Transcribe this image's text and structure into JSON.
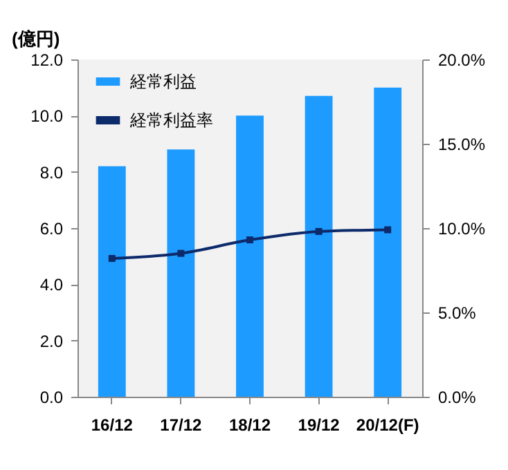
{
  "chart_data": {
    "type": "bar",
    "ylabel": "(億円)",
    "categories": [
      "16/12",
      "17/12",
      "18/12",
      "19/12",
      "20/12(F)"
    ],
    "series": [
      {
        "name": "経常利益",
        "color": "#1e9bff",
        "values": [
          8.2,
          8.8,
          10.0,
          10.7,
          11.0
        ]
      },
      {
        "name": "経常利益率",
        "type": "line",
        "axis": "y2",
        "color": "#0d2a6b",
        "values": [
          8.2,
          8.5,
          9.3,
          9.8,
          9.9
        ]
      }
    ],
    "ylim": [
      0,
      12
    ],
    "yticks": [
      {
        "value": 0,
        "label": "0.0"
      },
      {
        "value": 2,
        "label": "2.0"
      },
      {
        "value": 4,
        "label": "4.0"
      },
      {
        "value": 6,
        "label": "6.0"
      },
      {
        "value": 8,
        "label": "8.0"
      },
      {
        "value": 10,
        "label": "10.0"
      },
      {
        "value": 12,
        "label": "12.0"
      }
    ],
    "y2lim": [
      0,
      20
    ],
    "y2ticks": [
      {
        "value": 0,
        "label": "0.0%"
      },
      {
        "value": 5,
        "label": "5.0%"
      },
      {
        "value": 10,
        "label": "10.0%"
      },
      {
        "value": 15,
        "label": "15.0%"
      },
      {
        "value": 20,
        "label": "20.0%"
      }
    ],
    "grid": false,
    "legend": "top left",
    "marker": "square"
  }
}
